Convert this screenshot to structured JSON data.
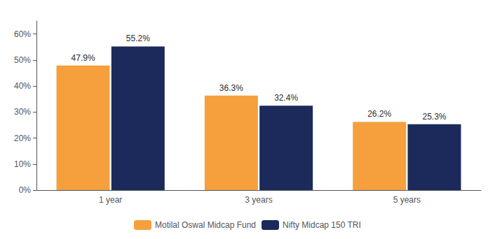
{
  "chart_data": {
    "type": "bar",
    "categories": [
      "1 year",
      "3 years",
      "5 years"
    ],
    "series": [
      {
        "name": "Motilal Oswal Midcap Fund",
        "color": "#F5A03C",
        "values": [
          47.9,
          36.3,
          26.2
        ],
        "value_labels": [
          "47.9%",
          "36.3%",
          "26.2%"
        ]
      },
      {
        "name": "Nifty Midcap 150 TRI",
        "color": "#1B2A5A",
        "values": [
          55.2,
          32.4,
          25.3
        ],
        "value_labels": [
          "55.2%",
          "32.4%",
          "25.3%"
        ]
      }
    ],
    "ylim": [
      0,
      65
    ],
    "yticks": [
      {
        "value": 0,
        "label": "0%"
      },
      {
        "value": 10,
        "label": "10%"
      },
      {
        "value": 20,
        "label": "20%"
      },
      {
        "value": 30,
        "label": "30%"
      },
      {
        "value": 40,
        "label": "40%"
      },
      {
        "value": 50,
        "label": "50%"
      },
      {
        "value": 60,
        "label": "60%"
      }
    ],
    "grid": false,
    "legend": "bottom",
    "data_labels": true
  }
}
